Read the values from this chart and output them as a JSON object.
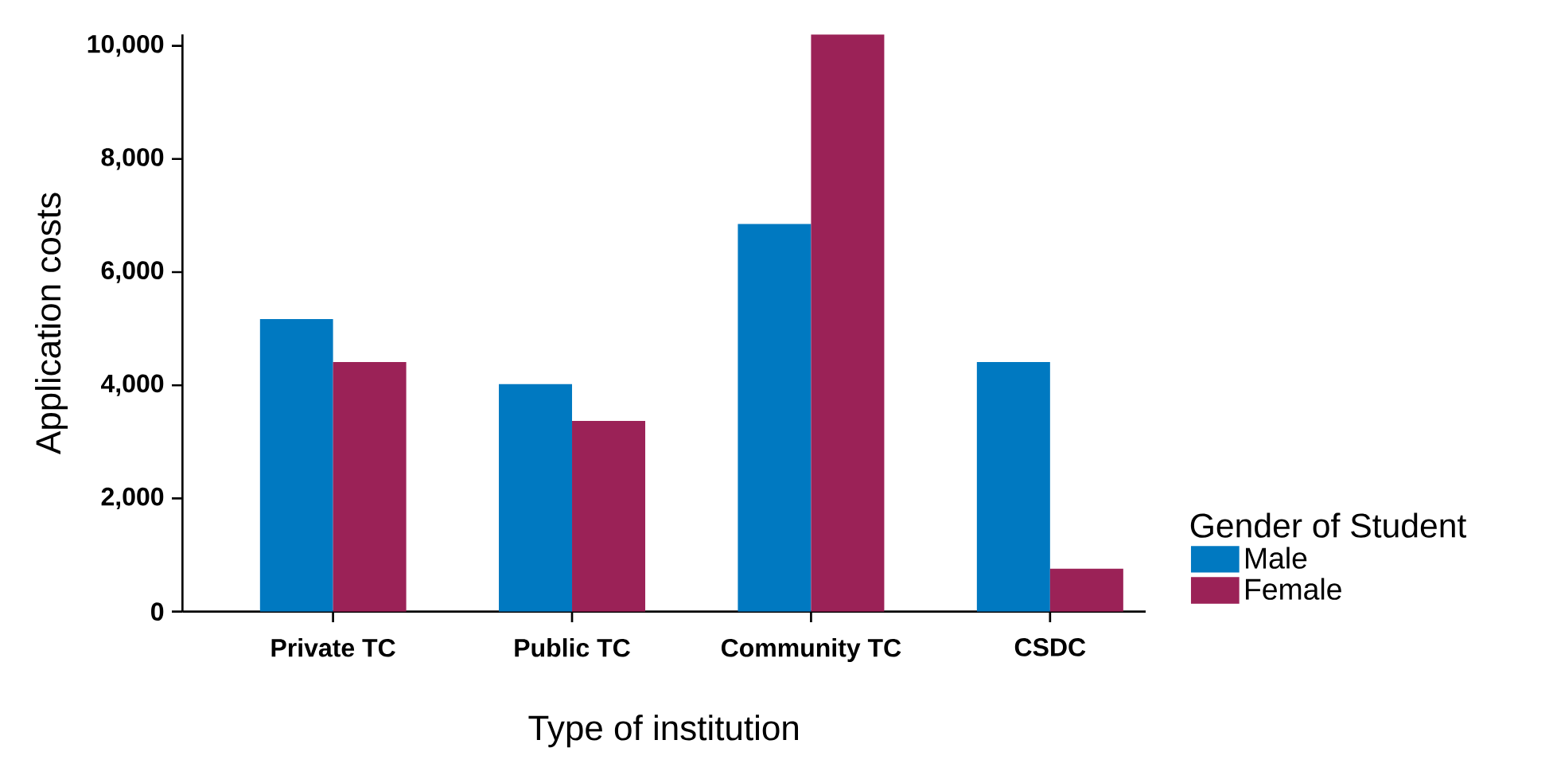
{
  "chart_data": {
    "type": "bar",
    "xlabel": "Type of institution",
    "ylabel": "Application costs",
    "legend_title": "Gender of Student",
    "categories": [
      "Private TC",
      "Public TC",
      "Community TC",
      "CSDC"
    ],
    "series": [
      {
        "name": "Male",
        "color": "#0079c1",
        "values": [
          5170,
          4020,
          6850,
          4410
        ]
      },
      {
        "name": "Female",
        "color": "#9b2257",
        "values": [
          4410,
          3370,
          10200,
          760
        ]
      }
    ],
    "ylim": [
      0,
      10200
    ],
    "yticks": [
      {
        "value": 0,
        "label": "0"
      },
      {
        "value": 2000,
        "label": "2,000"
      },
      {
        "value": 4000,
        "label": "4,000"
      },
      {
        "value": 6000,
        "label": "6,000"
      },
      {
        "value": 8000,
        "label": "8,000"
      },
      {
        "value": 10000,
        "label": "10,000"
      }
    ],
    "grid": false,
    "legend": "right"
  }
}
